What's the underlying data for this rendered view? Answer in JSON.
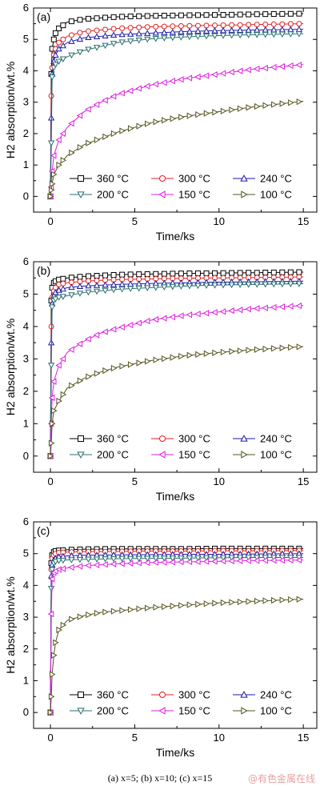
{
  "caption": "(a) x=5; (b) x=10; (c) x=15",
  "watermark": "@有色金属在线",
  "series_colors": {
    "360 °C": "#000000",
    "300 °C": "#e02020",
    "240 °C": "#1a1aa8",
    "200 °C": "#2a6f6f",
    "150 °C": "#e020e0",
    "100 °C": "#555520"
  },
  "series_markers": {
    "360 °C": "square",
    "300 °C": "circle",
    "240 °C": "triangle-up",
    "200 °C": "triangle-down",
    "150 °C": "triangle-left",
    "100 °C": "triangle-right"
  },
  "chart_data": [
    {
      "type": "line",
      "panel_label": "(a)",
      "xlabel": "Time/ks",
      "ylabel": "H2 absorption/wt.%",
      "xlim": [
        -1,
        15.8
      ],
      "ylim": [
        -0.5,
        6
      ],
      "xticks": [
        0,
        5,
        10,
        15
      ],
      "yticks": [
        0,
        1,
        2,
        3,
        4,
        5,
        6
      ],
      "legend": [
        "360 °C",
        "300 °C",
        "240 °C",
        "200 °C",
        "150 °C",
        "100 °C"
      ],
      "series": [
        {
          "name": "360 °C",
          "x": [
            0,
            0.05,
            0.1,
            0.2,
            0.3,
            0.5,
            1,
            2,
            4,
            6,
            8,
            10,
            12,
            15
          ],
          "y": [
            0,
            3.9,
            4.7,
            5.0,
            5.2,
            5.35,
            5.55,
            5.65,
            5.72,
            5.75,
            5.77,
            5.78,
            5.8,
            5.82
          ]
        },
        {
          "name": "300 °C",
          "x": [
            0,
            0.05,
            0.1,
            0.2,
            0.3,
            0.5,
            1,
            2,
            4,
            6,
            8,
            10,
            12,
            15
          ],
          "y": [
            0,
            3.2,
            4.1,
            4.5,
            4.7,
            4.9,
            5.1,
            5.25,
            5.35,
            5.4,
            5.43,
            5.45,
            5.47,
            5.5
          ]
        },
        {
          "name": "240 °C",
          "x": [
            0,
            0.05,
            0.1,
            0.2,
            0.3,
            0.5,
            1,
            2,
            4,
            6,
            8,
            10,
            12,
            15
          ],
          "y": [
            0,
            2.5,
            3.9,
            4.3,
            4.5,
            4.7,
            4.9,
            5.05,
            5.15,
            5.2,
            5.25,
            5.28,
            5.3,
            5.32
          ]
        },
        {
          "name": "200 °C",
          "x": [
            0,
            0.05,
            0.1,
            0.2,
            0.3,
            0.5,
            1,
            2,
            4,
            6,
            8,
            10,
            12,
            15
          ],
          "y": [
            0,
            1.7,
            3.8,
            4.1,
            4.2,
            4.3,
            4.45,
            4.65,
            4.9,
            5.02,
            5.08,
            5.12,
            5.15,
            5.18
          ]
        },
        {
          "name": "150 °C",
          "x": [
            0,
            0.05,
            0.1,
            0.2,
            0.5,
            1,
            2,
            3,
            4,
            6,
            8,
            10,
            12,
            15
          ],
          "y": [
            0,
            0.3,
            0.8,
            1.3,
            1.8,
            2.2,
            2.7,
            3.0,
            3.25,
            3.55,
            3.75,
            3.9,
            4.05,
            4.2
          ]
        },
        {
          "name": "100 °C",
          "x": [
            0,
            0.05,
            0.1,
            0.2,
            0.5,
            1,
            2,
            3,
            4,
            6,
            8,
            10,
            12,
            15
          ],
          "y": [
            0,
            0.2,
            0.4,
            0.7,
            1.0,
            1.3,
            1.65,
            1.85,
            2.05,
            2.35,
            2.55,
            2.7,
            2.85,
            3.03
          ]
        }
      ]
    },
    {
      "type": "line",
      "panel_label": "(b)",
      "xlabel": "Time/ks",
      "ylabel": "H2 absorption/wt.%",
      "xlim": [
        -1,
        15.8
      ],
      "ylim": [
        -0.5,
        6
      ],
      "xticks": [
        0,
        5,
        10,
        15
      ],
      "yticks": [
        0,
        1,
        2,
        3,
        4,
        5,
        6
      ],
      "legend": [
        "360 °C",
        "300 °C",
        "240 °C",
        "200 °C",
        "150 °C",
        "100 °C"
      ],
      "series": [
        {
          "name": "360 °C",
          "x": [
            0,
            0.05,
            0.1,
            0.2,
            0.3,
            0.5,
            1,
            2,
            4,
            6,
            8,
            10,
            12,
            15
          ],
          "y": [
            0,
            4.8,
            5.2,
            5.35,
            5.4,
            5.45,
            5.5,
            5.55,
            5.6,
            5.62,
            5.64,
            5.65,
            5.66,
            5.68
          ]
        },
        {
          "name": "300 °C",
          "x": [
            0,
            0.05,
            0.1,
            0.2,
            0.3,
            0.5,
            1,
            2,
            4,
            6,
            8,
            10,
            12,
            15
          ],
          "y": [
            0,
            4.0,
            4.9,
            5.1,
            5.2,
            5.3,
            5.35,
            5.4,
            5.45,
            5.47,
            5.49,
            5.5,
            5.51,
            5.53
          ]
        },
        {
          "name": "240 °C",
          "x": [
            0,
            0.05,
            0.1,
            0.2,
            0.3,
            0.5,
            1,
            2,
            4,
            6,
            8,
            10,
            12,
            15
          ],
          "y": [
            0,
            3.5,
            4.7,
            4.95,
            5.05,
            5.12,
            5.2,
            5.25,
            5.3,
            5.33,
            5.35,
            5.37,
            5.38,
            5.4
          ]
        },
        {
          "name": "200 °C",
          "x": [
            0,
            0.05,
            0.1,
            0.2,
            0.3,
            0.5,
            1,
            2,
            4,
            6,
            8,
            10,
            12,
            15
          ],
          "y": [
            0,
            2.8,
            4.6,
            4.8,
            4.85,
            4.9,
            4.95,
            5.05,
            5.15,
            5.2,
            5.25,
            5.28,
            5.3,
            5.32
          ]
        },
        {
          "name": "150 °C",
          "x": [
            0,
            0.05,
            0.1,
            0.2,
            0.5,
            1,
            2,
            3,
            4,
            6,
            8,
            10,
            12,
            15
          ],
          "y": [
            0,
            1.0,
            1.8,
            2.3,
            2.8,
            3.2,
            3.55,
            3.8,
            3.95,
            4.2,
            4.35,
            4.45,
            4.55,
            4.65
          ]
        },
        {
          "name": "100 °C",
          "x": [
            0,
            0.05,
            0.1,
            0.2,
            0.5,
            1,
            2,
            3,
            4,
            6,
            8,
            10,
            12,
            15
          ],
          "y": [
            0,
            0.4,
            1.0,
            1.4,
            1.7,
            2.1,
            2.4,
            2.6,
            2.75,
            2.95,
            3.1,
            3.2,
            3.28,
            3.38
          ]
        }
      ]
    },
    {
      "type": "line",
      "panel_label": "(c)",
      "xlabel": "Time/ks",
      "ylabel": "H2 absorption/wt.%",
      "xlim": [
        -1,
        15.8
      ],
      "ylim": [
        -0.5,
        6
      ],
      "xticks": [
        0,
        5,
        10,
        15
      ],
      "yticks": [
        0,
        1,
        2,
        3,
        4,
        5,
        6
      ],
      "legend": [
        "360 °C",
        "300 °C",
        "240 °C",
        "200 °C",
        "150 °C",
        "100 °C"
      ],
      "series": [
        {
          "name": "360 °C",
          "x": [
            0,
            0.05,
            0.1,
            0.2,
            0.3,
            0.5,
            1,
            2,
            4,
            6,
            8,
            10,
            12,
            15
          ],
          "y": [
            0,
            4.7,
            4.95,
            5.05,
            5.08,
            5.1,
            5.12,
            5.14,
            5.15,
            5.15,
            5.15,
            5.16,
            5.16,
            5.16
          ]
        },
        {
          "name": "300 °C",
          "x": [
            0,
            0.05,
            0.1,
            0.2,
            0.3,
            0.5,
            1,
            2,
            4,
            6,
            8,
            10,
            12,
            15
          ],
          "y": [
            0,
            4.5,
            4.85,
            4.95,
            5.0,
            5.03,
            5.05,
            5.06,
            5.07,
            5.08,
            5.08,
            5.09,
            5.09,
            5.1
          ]
        },
        {
          "name": "240 °C",
          "x": [
            0,
            0.05,
            0.1,
            0.2,
            0.3,
            0.5,
            1,
            2,
            4,
            6,
            8,
            10,
            12,
            15
          ],
          "y": [
            0,
            4.3,
            4.65,
            4.8,
            4.85,
            4.9,
            4.93,
            4.95,
            4.96,
            4.97,
            4.98,
            4.98,
            4.99,
            5.0
          ]
        },
        {
          "name": "200 °C",
          "x": [
            0,
            0.05,
            0.1,
            0.2,
            0.3,
            0.5,
            1,
            2,
            4,
            6,
            8,
            10,
            12,
            15
          ],
          "y": [
            0,
            3.9,
            4.5,
            4.7,
            4.75,
            4.78,
            4.8,
            4.82,
            4.84,
            4.85,
            4.86,
            4.87,
            4.88,
            4.88
          ]
        },
        {
          "name": "150 °C",
          "x": [
            0,
            0.05,
            0.1,
            0.2,
            0.3,
            0.5,
            1,
            2,
            4,
            6,
            8,
            10,
            12,
            15
          ],
          "y": [
            0,
            3.1,
            4.2,
            4.4,
            4.45,
            4.5,
            4.55,
            4.62,
            4.68,
            4.72,
            4.74,
            4.76,
            4.78,
            4.8
          ]
        },
        {
          "name": "100 °C",
          "x": [
            0,
            0.05,
            0.1,
            0.2,
            0.3,
            0.5,
            1,
            2,
            3,
            4,
            6,
            8,
            10,
            12,
            15
          ],
          "y": [
            0,
            0.5,
            1.2,
            1.8,
            2.2,
            2.6,
            2.9,
            3.05,
            3.15,
            3.2,
            3.3,
            3.38,
            3.45,
            3.5,
            3.57
          ]
        }
      ]
    }
  ]
}
